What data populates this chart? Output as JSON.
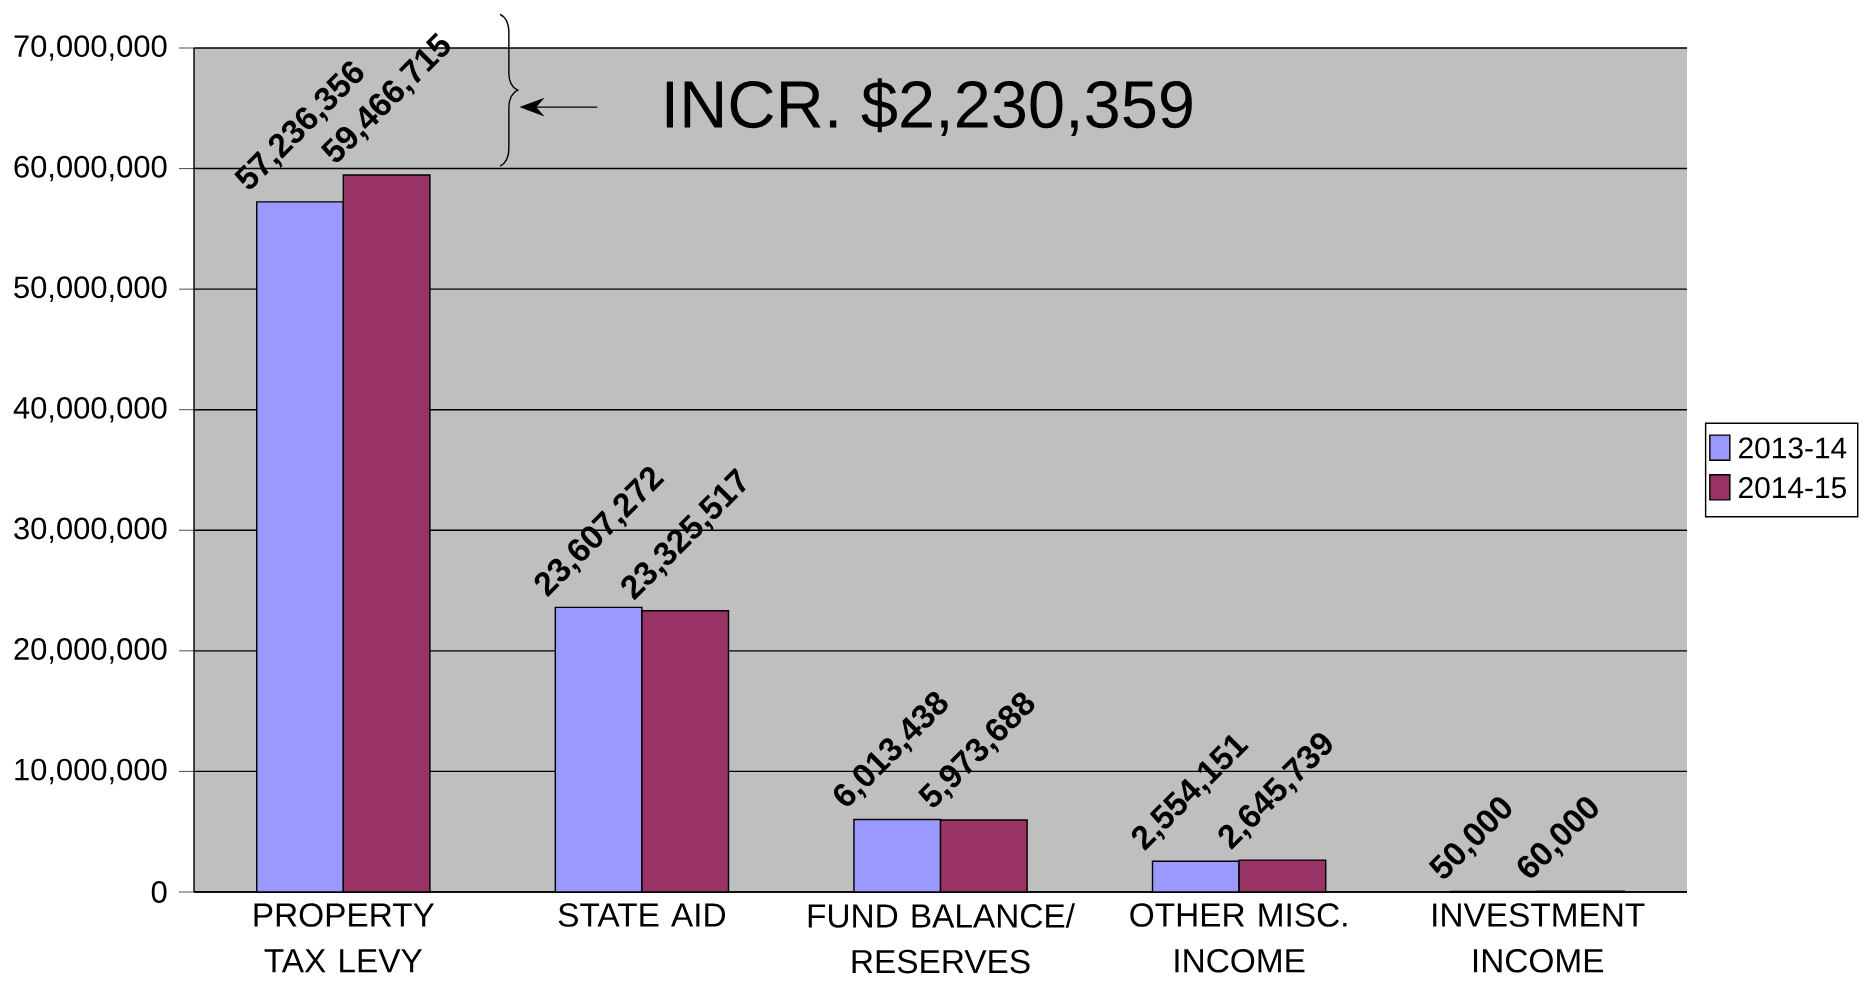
{
  "chart_data": {
    "type": "bar",
    "categories": [
      "PROPERTY TAX LEVY",
      "STATE AID",
      "FUND BALANCE/ RESERVES",
      "OTHER MISC. INCOME",
      "INVESTMENT INCOME"
    ],
    "series": [
      {
        "name": "2013-14",
        "color": "#9999ff",
        "values": [
          57236356,
          23607272,
          6013438,
          2554151,
          50000
        ],
        "value_labels": [
          "57,236,356",
          "23,607,272",
          "6,013,438",
          "2,554,151",
          "50,000"
        ]
      },
      {
        "name": "2014-15",
        "color": "#993366",
        "values": [
          59466715,
          23325517,
          5973688,
          2645739,
          60000
        ],
        "value_labels": [
          "59,466,715",
          "23,325,517",
          "5,973,688",
          "2,645,739",
          "60,000"
        ]
      }
    ],
    "ylim": [
      0,
      70000000
    ],
    "yticks": [
      {
        "value": 0,
        "label": "0"
      },
      {
        "value": 10000000,
        "label": "10,000,000"
      },
      {
        "value": 20000000,
        "label": "20,000,000"
      },
      {
        "value": 30000000,
        "label": "30,000,000"
      },
      {
        "value": 40000000,
        "label": "40,000,000"
      },
      {
        "value": 50000000,
        "label": "50,000,000"
      },
      {
        "value": 60000000,
        "label": "60,000,000"
      },
      {
        "value": 70000000,
        "label": "70,000,000"
      }
    ],
    "grid": "y",
    "legend": "right",
    "annotations": [
      "INCR. $2,230,359"
    ]
  }
}
